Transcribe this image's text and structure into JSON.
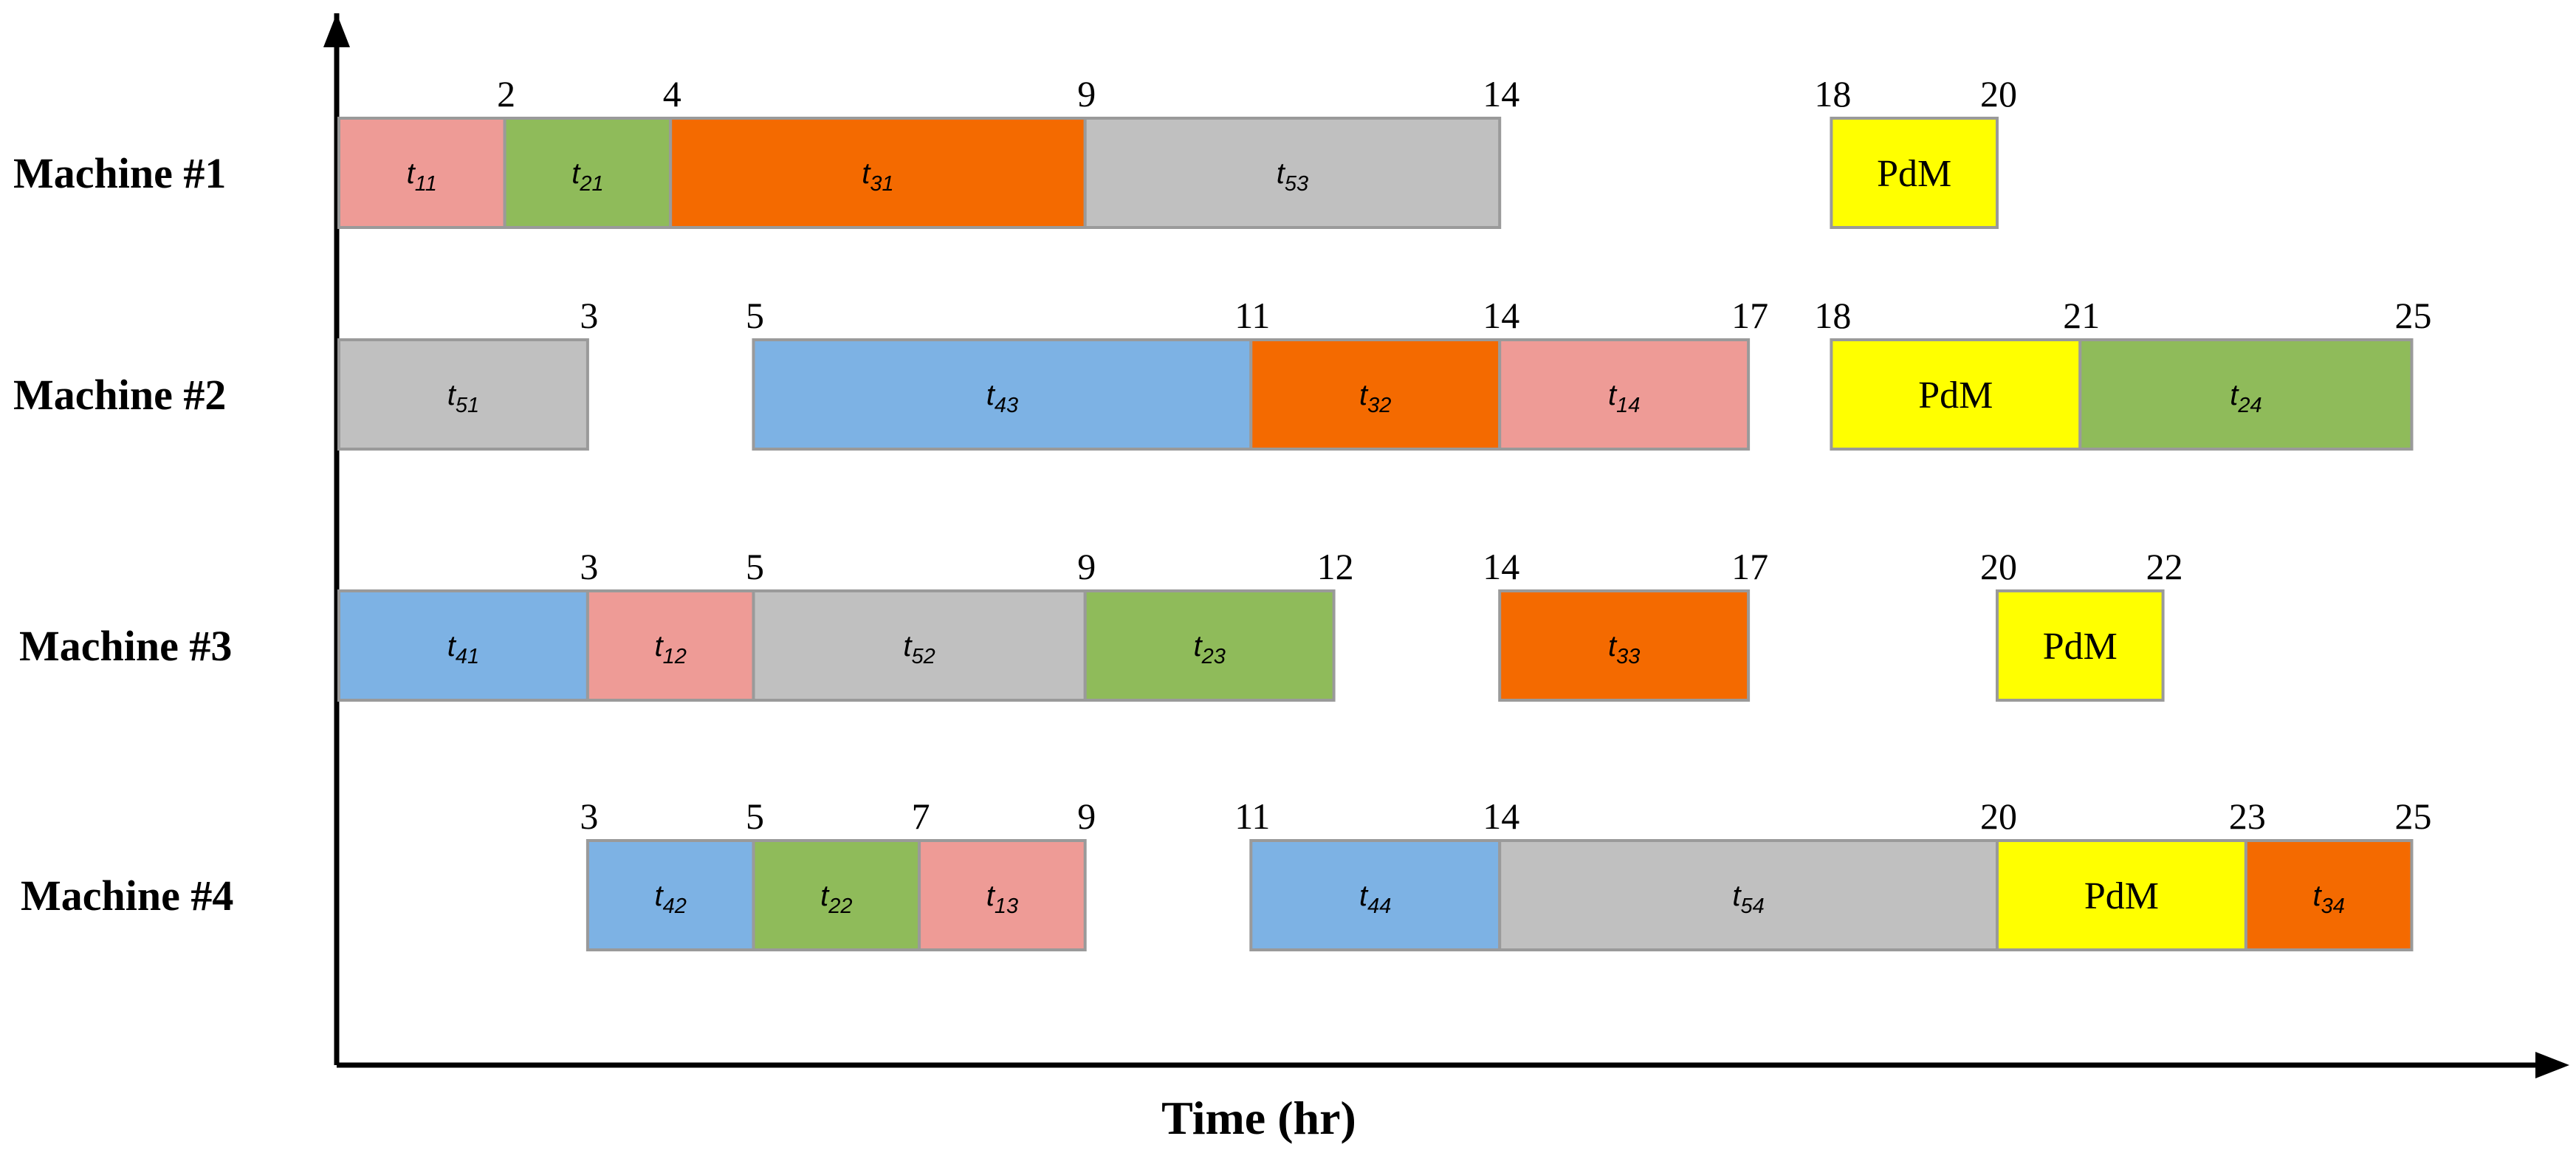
{
  "chart_data": {
    "type": "gantt",
    "xlabel": "Time (hr)",
    "xlim": [
      0,
      30
    ],
    "colors": {
      "job1": "#ee9b96",
      "job2": "#8fbb5a",
      "job3": "#f46a00",
      "job4": "#7db2e4",
      "job5": "#c0c0c0",
      "pdm": "#ffff00",
      "border": "#9a9a9a",
      "axis": "#000000"
    },
    "machines": [
      {
        "name": "Machine #1",
        "tasks": [
          {
            "label": "t",
            "sub": "11",
            "job": "job1",
            "start": 0,
            "end": 2
          },
          {
            "label": "t",
            "sub": "21",
            "job": "job2",
            "start": 2,
            "end": 4
          },
          {
            "label": "t",
            "sub": "31",
            "job": "job3",
            "start": 4,
            "end": 9
          },
          {
            "label": "t",
            "sub": "53",
            "job": "job5",
            "start": 9,
            "end": 14
          },
          {
            "label": "PdM",
            "sub": "",
            "job": "pdm",
            "start": 18,
            "end": 20
          }
        ],
        "ticks": [
          "2",
          "4",
          "9",
          "14",
          "18",
          "20"
        ]
      },
      {
        "name": "Machine #2",
        "tasks": [
          {
            "label": "t",
            "sub": "51",
            "job": "job5",
            "start": 0,
            "end": 3
          },
          {
            "label": "t",
            "sub": "43",
            "job": "job4",
            "start": 5,
            "end": 11
          },
          {
            "label": "t",
            "sub": "32",
            "job": "job3",
            "start": 11,
            "end": 14
          },
          {
            "label": "t",
            "sub": "14",
            "job": "job1",
            "start": 14,
            "end": 17
          },
          {
            "label": "PdM",
            "sub": "",
            "job": "pdm",
            "start": 18,
            "end": 21
          },
          {
            "label": "t",
            "sub": "24",
            "job": "job2",
            "start": 21,
            "end": 25
          }
        ],
        "ticks": [
          "3",
          "5",
          "11",
          "14",
          "17",
          "18",
          "21",
          "25"
        ]
      },
      {
        "name": "Machine #3",
        "tasks": [
          {
            "label": "t",
            "sub": "41",
            "job": "job4",
            "start": 0,
            "end": 3
          },
          {
            "label": "t",
            "sub": "12",
            "job": "job1",
            "start": 3,
            "end": 5
          },
          {
            "label": "t",
            "sub": "52",
            "job": "job5",
            "start": 5,
            "end": 9
          },
          {
            "label": "t",
            "sub": "23",
            "job": "job2",
            "start": 9,
            "end": 12
          },
          {
            "label": "t",
            "sub": "33",
            "job": "job3",
            "start": 14,
            "end": 17
          },
          {
            "label": "PdM",
            "sub": "",
            "job": "pdm",
            "start": 20,
            "end": 22
          }
        ],
        "ticks": [
          "3",
          "5",
          "9",
          "12",
          "14",
          "17",
          "20",
          "22"
        ]
      },
      {
        "name": "Machine #4",
        "tasks": [
          {
            "label": "t",
            "sub": "42",
            "job": "job4",
            "start": 3,
            "end": 5
          },
          {
            "label": "t",
            "sub": "22",
            "job": "job2",
            "start": 5,
            "end": 7
          },
          {
            "label": "t",
            "sub": "13",
            "job": "job1",
            "start": 7,
            "end": 9
          },
          {
            "label": "t",
            "sub": "44",
            "job": "job4",
            "start": 11,
            "end": 14
          },
          {
            "label": "t",
            "sub": "54",
            "job": "job5",
            "start": 14,
            "end": 20
          },
          {
            "label": "PdM",
            "sub": "",
            "job": "pdm",
            "start": 20,
            "end": 23
          },
          {
            "label": "t",
            "sub": "34",
            "job": "job3",
            "start": 23,
            "end": 25
          }
        ],
        "ticks": [
          "3",
          "5",
          "7",
          "9",
          "11",
          "14",
          "20",
          "23",
          "25"
        ]
      }
    ]
  }
}
